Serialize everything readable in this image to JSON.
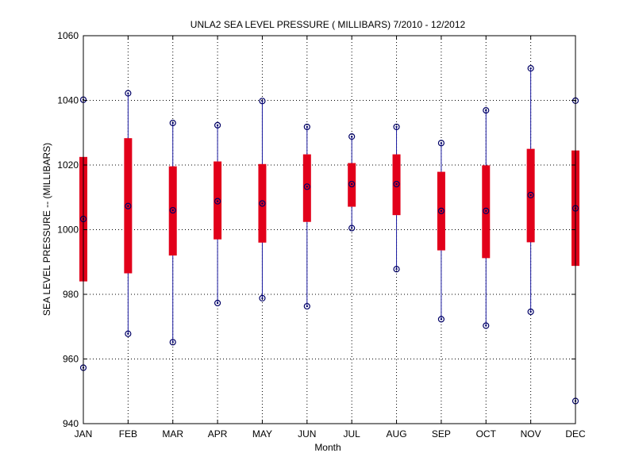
{
  "chart_data": {
    "type": "boxplot",
    "title": "UNLA2  SEA LEVEL PRESSURE ( MILLIBARS) 7/2010 - 12/2012",
    "xlabel": "Month",
    "ylabel": "SEA LEVEL PRESSURE -- (MILLIBARS)",
    "ylim": [
      940,
      1060
    ],
    "yticks": [
      940,
      960,
      980,
      1000,
      1020,
      1040,
      1060
    ],
    "grid": true,
    "categories": [
      "JAN",
      "FEB",
      "MAR",
      "APR",
      "MAY",
      "JUN",
      "JUL",
      "AUG",
      "SEP",
      "OCT",
      "NOV",
      "DEC"
    ],
    "series": [
      {
        "name": "max",
        "values": [
          1040.2,
          1042.2,
          1033.0,
          1032.3,
          1039.8,
          1031.8,
          1028.8,
          1031.8,
          1026.8,
          1036.9,
          1049.9,
          1039.9
        ]
      },
      {
        "name": "upper",
        "values": [
          1022.5,
          1028.3,
          1019.6,
          1021.1,
          1020.3,
          1023.3,
          1020.6,
          1023.3,
          1017.9,
          1019.9,
          1025.0,
          1024.5
        ]
      },
      {
        "name": "median",
        "values": [
          1003.3,
          1007.3,
          1006.0,
          1008.8,
          1008.1,
          1013.3,
          1014.1,
          1014.1,
          1005.8,
          1005.8,
          1010.7,
          1006.6
        ]
      },
      {
        "name": "lower",
        "values": [
          984.0,
          986.5,
          992.0,
          997.0,
          996.0,
          1002.4,
          1007.1,
          1004.5,
          993.6,
          991.2,
          996.1,
          988.8
        ]
      },
      {
        "name": "min",
        "values": [
          957.3,
          967.8,
          965.2,
          977.3,
          978.8,
          976.3,
          1000.5,
          987.8,
          972.3,
          970.3,
          974.6,
          947.0
        ]
      }
    ],
    "colors": {
      "box": "#e2001a",
      "whisker": "#1a1aa0",
      "marker": "#000066",
      "grid": "#000000",
      "axis": "#000000"
    }
  }
}
